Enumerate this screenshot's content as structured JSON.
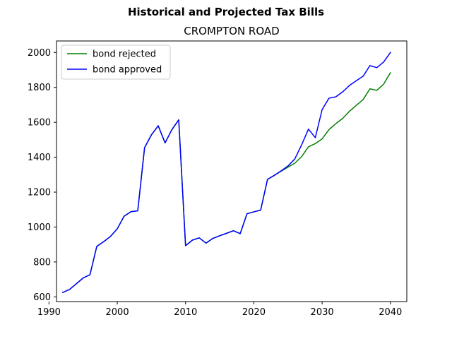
{
  "chart_data": {
    "type": "line",
    "suptitle": "Historical and Projected Tax Bills",
    "title": "CROMPTON ROAD",
    "xlabel": "",
    "ylabel": "",
    "xlim": [
      1991.1,
      2042.4
    ],
    "ylim": [
      573,
      2066
    ],
    "xticks": [
      1990,
      2000,
      2010,
      2020,
      2030,
      2040
    ],
    "yticks": [
      600,
      800,
      1000,
      1200,
      1400,
      1600,
      1800,
      2000
    ],
    "grid": false,
    "legend_position": "upper-left",
    "x": [
      1992,
      1993,
      1994,
      1995,
      1996,
      1997,
      1998,
      1999,
      2000,
      2001,
      2002,
      2003,
      2004,
      2005,
      2006,
      2007,
      2008,
      2009,
      2010,
      2011,
      2012,
      2013,
      2014,
      2015,
      2016,
      2017,
      2018,
      2019,
      2020,
      2021,
      2022,
      2023,
      2024,
      2025,
      2026,
      2027,
      2028,
      2029,
      2030,
      2031,
      2032,
      2033,
      2034,
      2035,
      2036,
      2037,
      2038,
      2039,
      2040
    ],
    "series": [
      {
        "name": "bond rejected",
        "color": "#008000",
        "values": [
          625,
          642,
          675,
          708,
          727,
          889,
          916,
          946,
          990,
          1062,
          1088,
          1093,
          1455,
          1528,
          1580,
          1482,
          1558,
          1614,
          893,
          925,
          938,
          908,
          935,
          950,
          964,
          979,
          962,
          1076,
          1087,
          1097,
          1273,
          1296,
          1320,
          1343,
          1366,
          1403,
          1460,
          1478,
          1505,
          1558,
          1592,
          1622,
          1663,
          1697,
          1730,
          1792,
          1783,
          1818,
          1884
        ]
      },
      {
        "name": "bond approved",
        "color": "#0000ff",
        "values": [
          625,
          642,
          675,
          708,
          727,
          889,
          916,
          946,
          990,
          1062,
          1088,
          1093,
          1455,
          1528,
          1580,
          1482,
          1558,
          1614,
          893,
          925,
          938,
          908,
          935,
          950,
          964,
          979,
          962,
          1076,
          1087,
          1097,
          1273,
          1296,
          1322,
          1350,
          1390,
          1471,
          1561,
          1512,
          1673,
          1738,
          1746,
          1774,
          1811,
          1838,
          1864,
          1925,
          1913,
          1945,
          2000
        ]
      }
    ]
  }
}
